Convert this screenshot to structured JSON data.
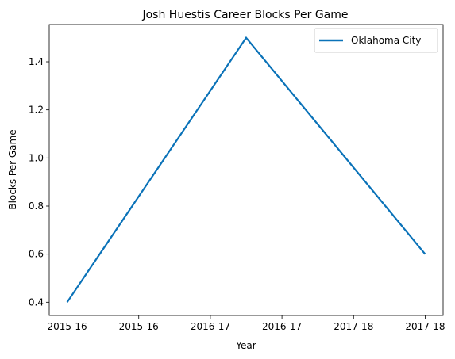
{
  "chart_data": {
    "type": "line",
    "title": "Josh Huestis Career Blocks Per Game",
    "xlabel": "Year",
    "ylabel": "Blocks Per Game",
    "x": [
      0,
      1,
      2
    ],
    "x_tick_values": [
      0,
      0.4,
      0.8,
      1.2,
      1.6,
      2.0
    ],
    "x_tick_labels": [
      "2015-16",
      "2015-16",
      "2016-17",
      "2016-17",
      "2017-18",
      "2017-18"
    ],
    "xlim": [
      -0.1,
      2.1
    ],
    "ylim": [
      0.345,
      1.555
    ],
    "y_ticks": [
      0.4,
      0.6,
      0.8,
      1.0,
      1.2,
      1.4
    ],
    "y_tick_labels": [
      "0.4",
      "0.6",
      "0.8",
      "1.0",
      "1.2",
      "1.4"
    ],
    "series": [
      {
        "name": "Oklahoma City",
        "values": [
          0.4,
          1.5,
          0.6
        ],
        "color": "#0a72b8"
      }
    ],
    "legend_position": "top-right",
    "grid": false
  }
}
